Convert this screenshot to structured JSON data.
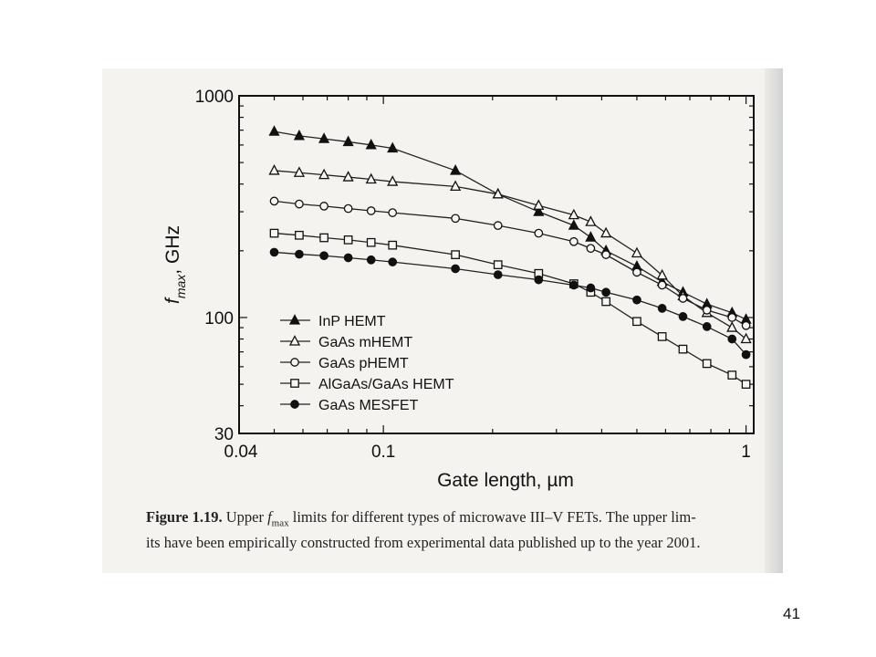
{
  "page": {
    "number": "41"
  },
  "caption": {
    "figure_label": "Figure 1.19.",
    "text_before_symbol": "Upper ",
    "symbol": "f",
    "symbol_sub": "max",
    "text_line1_rest": " limits for different types of microwave III–V FETs. The upper lim-",
    "text_line2": "its have been empirically constructed from experimental data published up to the year 2001."
  },
  "chart_data": {
    "type": "line",
    "ylabel_symbol": "f",
    "ylabel_sub": "max",
    "ylabel_unit": ", GHz",
    "xlabel": "Gate length, µm",
    "x_scale": "log",
    "y_scale": "log",
    "xlim": [
      0.04,
      1.05
    ],
    "ylim": [
      30,
      1000
    ],
    "x_ticks": [
      {
        "value": 0.04,
        "label": "0.04"
      },
      {
        "value": 0.1,
        "label": "0.1"
      },
      {
        "value": 1,
        "label": "1"
      }
    ],
    "y_ticks": [
      {
        "value": 30,
        "label": "30"
      },
      {
        "value": 100,
        "label": "100"
      },
      {
        "value": 1000,
        "label": "1000"
      }
    ],
    "grid": false,
    "legend_position": "lower-left",
    "series": [
      {
        "name": "InP HEMT",
        "marker": "triangle",
        "filled": true,
        "x": [
          0.05,
          0.0586,
          0.0686,
          0.08,
          0.0925,
          0.106,
          0.158,
          0.207,
          0.268,
          0.335,
          0.373,
          0.411,
          0.5,
          0.587,
          0.67,
          0.78,
          0.915,
          1.0
        ],
        "y": [
          690,
          660,
          640,
          620,
          600,
          580,
          460,
          360,
          300,
          260,
          230,
          200,
          170,
          145,
          130,
          115,
          105,
          98
        ]
      },
      {
        "name": "GaAs mHEMT",
        "marker": "triangle",
        "filled": false,
        "x": [
          0.05,
          0.0586,
          0.0686,
          0.08,
          0.0925,
          0.106,
          0.158,
          0.207,
          0.268,
          0.335,
          0.373,
          0.411,
          0.5,
          0.587,
          0.67,
          0.78,
          0.915,
          1.0
        ],
        "y": [
          460,
          450,
          440,
          430,
          420,
          410,
          390,
          360,
          320,
          290,
          270,
          240,
          195,
          155,
          125,
          105,
          90,
          80
        ]
      },
      {
        "name": "GaAs pHEMT",
        "marker": "circle",
        "filled": false,
        "x": [
          0.05,
          0.0586,
          0.0686,
          0.08,
          0.0925,
          0.106,
          0.158,
          0.207,
          0.268,
          0.335,
          0.373,
          0.411,
          0.5,
          0.587,
          0.67,
          0.78,
          0.915,
          1.0
        ],
        "y": [
          335,
          325,
          318,
          310,
          303,
          297,
          280,
          260,
          240,
          220,
          205,
          192,
          160,
          140,
          122,
          108,
          100,
          92
        ]
      },
      {
        "name": "AlGaAs/GaAs HEMT",
        "marker": "square",
        "filled": false,
        "x": [
          0.05,
          0.0586,
          0.0686,
          0.08,
          0.0925,
          0.106,
          0.158,
          0.207,
          0.268,
          0.335,
          0.373,
          0.411,
          0.5,
          0.587,
          0.67,
          0.78,
          0.915,
          1.0
        ],
        "y": [
          240,
          235,
          229,
          224,
          218,
          212,
          192,
          173,
          158,
          142,
          130,
          118,
          96,
          82,
          72,
          62,
          55,
          50
        ]
      },
      {
        "name": "GaAs MESFET",
        "marker": "circle",
        "filled": true,
        "x": [
          0.05,
          0.0586,
          0.0686,
          0.08,
          0.0925,
          0.106,
          0.158,
          0.207,
          0.268,
          0.335,
          0.373,
          0.411,
          0.5,
          0.587,
          0.67,
          0.78,
          0.915,
          1.0
        ],
        "y": [
          197,
          193,
          190,
          186,
          182,
          178,
          166,
          156,
          148,
          140,
          136,
          130,
          120,
          110,
          101,
          91,
          80,
          68
        ]
      }
    ]
  }
}
